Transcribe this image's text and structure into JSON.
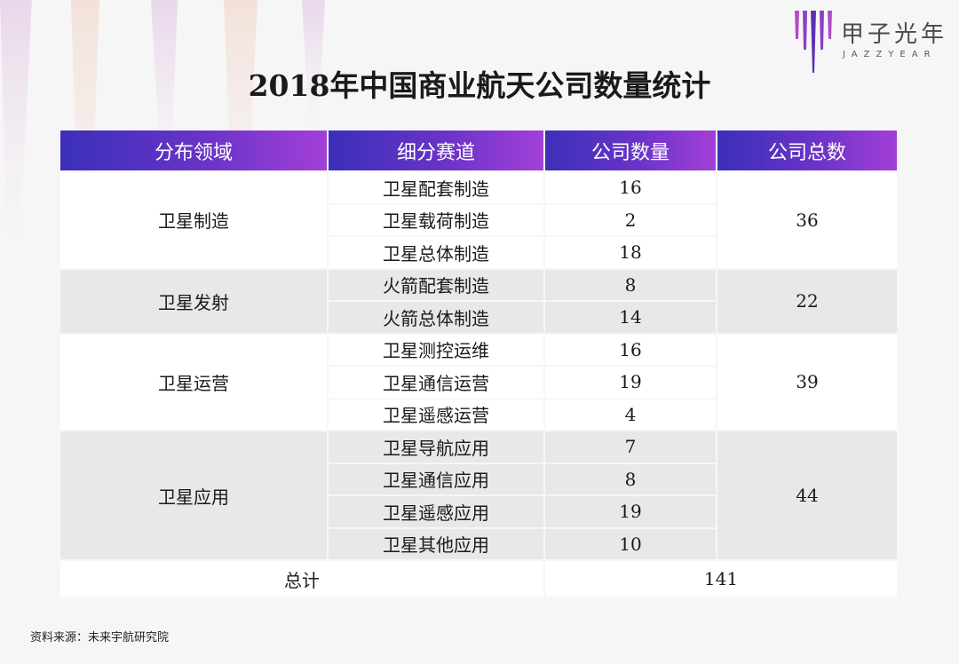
{
  "logo": {
    "name": "甲子光年",
    "sub": "JAZZYEAR"
  },
  "title": "2018年中国商业航天公司数量统计",
  "colors": {
    "header_start": "#3b2fb8",
    "header_end": "#a23fd8",
    "row_gray": "#e9e7e9",
    "row_white": "#ffffff"
  },
  "chart_data": {
    "type": "table",
    "title": "2018年中国商业航天公司数量统计",
    "columns": [
      "分布领域",
      "细分赛道",
      "公司数量",
      "公司总数"
    ],
    "groups": [
      {
        "domain": "卫星制造",
        "total": 36,
        "rows": [
          {
            "track": "卫星配套制造",
            "count": 16
          },
          {
            "track": "卫星载荷制造",
            "count": 2
          },
          {
            "track": "卫星总体制造",
            "count": 18
          }
        ]
      },
      {
        "domain": "卫星发射",
        "total": 22,
        "rows": [
          {
            "track": "火箭配套制造",
            "count": 8
          },
          {
            "track": "火箭总体制造",
            "count": 14
          }
        ]
      },
      {
        "domain": "卫星运营",
        "total": 39,
        "rows": [
          {
            "track": "卫星测控运维",
            "count": 16
          },
          {
            "track": "卫星通信运营",
            "count": 19
          },
          {
            "track": "卫星遥感运营",
            "count": 4
          }
        ]
      },
      {
        "domain": "卫星应用",
        "total": 44,
        "rows": [
          {
            "track": "卫星导航应用",
            "count": 7
          },
          {
            "track": "卫星通信应用",
            "count": 8
          },
          {
            "track": "卫星遥感应用",
            "count": 19
          },
          {
            "track": "卫星其他应用",
            "count": 10
          }
        ]
      }
    ],
    "grand_total_label": "总计",
    "grand_total": 141
  },
  "source": "资料来源：未来宇航研究院"
}
